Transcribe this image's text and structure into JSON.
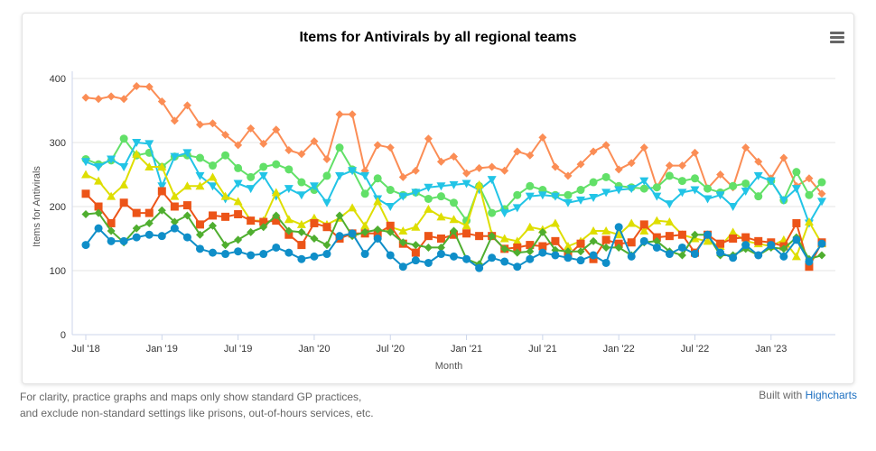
{
  "chart_data": {
    "type": "line",
    "title": "Items for Antivirals by all regional teams",
    "xlabel": "Month",
    "ylabel": "Items for Antivirals",
    "ylim": [
      0,
      400
    ],
    "yticks": [
      "0",
      "100",
      "200",
      "300",
      "400"
    ],
    "xticks": [
      "Jul '18",
      "Jan '19",
      "Jul '19",
      "Jan '20",
      "Jul '20",
      "Jan '21",
      "Jul '21",
      "Jan '22",
      "Jul '22",
      "Jan '23"
    ],
    "x_start": "Jul 2018",
    "x_end": "May 2023",
    "grid": "horizontal",
    "series": [
      {
        "name": "orange",
        "color": "#fb8d55",
        "marker": "diamond",
        "values": [
          370,
          368,
          372,
          368,
          388,
          387,
          364,
          334,
          358,
          328,
          330,
          312,
          296,
          322,
          298,
          320,
          288,
          282,
          302,
          274,
          344,
          344,
          256,
          296,
          292,
          246,
          256,
          306,
          270,
          278,
          252,
          260,
          262,
          256,
          286,
          280,
          308,
          262,
          248,
          266,
          286,
          296,
          258,
          268,
          292,
          230,
          264,
          264,
          284,
          228,
          250,
          230,
          292,
          270,
          244,
          276,
          232,
          244,
          220
        ]
      },
      {
        "name": "light-green",
        "color": "#62e068",
        "marker": "circle",
        "values": [
          274,
          266,
          272,
          306,
          280,
          284,
          262,
          278,
          280,
          276,
          264,
          280,
          260,
          246,
          262,
          266,
          258,
          238,
          226,
          248,
          292,
          258,
          220,
          244,
          226,
          218,
          222,
          212,
          216,
          206,
          178,
          232,
          190,
          196,
          218,
          232,
          226,
          218,
          218,
          226,
          238,
          246,
          232,
          230,
          228,
          230,
          248,
          240,
          244,
          228,
          222,
          232,
          236,
          216,
          240,
          210,
          254,
          218,
          238
        ]
      },
      {
        "name": "cyan",
        "color": "#22c4e6",
        "marker": "triangle-down",
        "values": [
          270,
          262,
          274,
          262,
          300,
          298,
          232,
          278,
          284,
          248,
          232,
          212,
          236,
          228,
          248,
          216,
          228,
          218,
          232,
          206,
          248,
          256,
          248,
          212,
          200,
          216,
          222,
          230,
          232,
          234,
          236,
          226,
          242,
          190,
          198,
          216,
          218,
          216,
          206,
          210,
          214,
          222,
          226,
          228,
          240,
          216,
          204,
          222,
          226,
          212,
          218,
          200,
          224,
          248,
          240,
          210,
          228,
          174,
          208
        ]
      },
      {
        "name": "yellow",
        "color": "#dede00",
        "marker": "triangle",
        "values": [
          250,
          240,
          216,
          234,
          282,
          262,
          262,
          216,
          232,
          232,
          246,
          216,
          208,
          178,
          178,
          222,
          180,
          172,
          182,
          172,
          182,
          198,
          170,
          208,
          168,
          162,
          168,
          196,
          184,
          180,
          170,
          234,
          156,
          150,
          146,
          168,
          164,
          174,
          138,
          146,
          162,
          162,
          156,
          174,
          162,
          178,
          176,
          156,
          150,
          146,
          138,
          160,
          146,
          142,
          138,
          148,
          122,
          176,
          142
        ]
      },
      {
        "name": "red",
        "color": "#ec5418",
        "marker": "square",
        "values": [
          220,
          200,
          174,
          206,
          190,
          190,
          224,
          200,
          202,
          172,
          186,
          184,
          188,
          178,
          176,
          178,
          156,
          140,
          174,
          168,
          150,
          158,
          158,
          158,
          170,
          142,
          128,
          154,
          150,
          156,
          158,
          154,
          154,
          134,
          136,
          140,
          138,
          146,
          124,
          142,
          118,
          148,
          142,
          144,
          172,
          152,
          154,
          156,
          128,
          156,
          142,
          150,
          152,
          146,
          144,
          138,
          174,
          106,
          144
        ]
      },
      {
        "name": "green",
        "color": "#4fae2f",
        "marker": "diamond",
        "values": [
          188,
          190,
          162,
          144,
          166,
          174,
          194,
          176,
          186,
          156,
          170,
          140,
          148,
          160,
          168,
          186,
          162,
          160,
          150,
          140,
          186,
          154,
          160,
          164,
          160,
          144,
          140,
          136,
          136,
          162,
          118,
          110,
          154,
          134,
          128,
          130,
          160,
          132,
          130,
          130,
          146,
          136,
          136,
          124,
          144,
          146,
          130,
          124,
          156,
          156,
          124,
          124,
          134,
          124,
          136,
          134,
          152,
          118,
          124
        ]
      },
      {
        "name": "blue",
        "color": "#0f8ec8",
        "marker": "circle",
        "values": [
          140,
          166,
          146,
          146,
          152,
          156,
          154,
          166,
          152,
          134,
          128,
          126,
          130,
          124,
          126,
          136,
          128,
          118,
          122,
          126,
          154,
          158,
          126,
          150,
          124,
          106,
          116,
          112,
          126,
          122,
          118,
          104,
          120,
          114,
          106,
          118,
          128,
          124,
          120,
          116,
          124,
          112,
          168,
          122,
          146,
          136,
          126,
          136,
          126,
          156,
          128,
          120,
          140,
          124,
          140,
          122,
          148,
          114,
          142
        ]
      }
    ]
  },
  "footer": {
    "note": "For clarity, practice graphs and maps only show standard GP practices, and exclude non-standard settings like prisons, out-of-hours services, etc.",
    "credit_prefix": "Built with ",
    "credit_link": "Highcharts"
  },
  "icons": {
    "menu": "hamburger-menu-icon"
  }
}
